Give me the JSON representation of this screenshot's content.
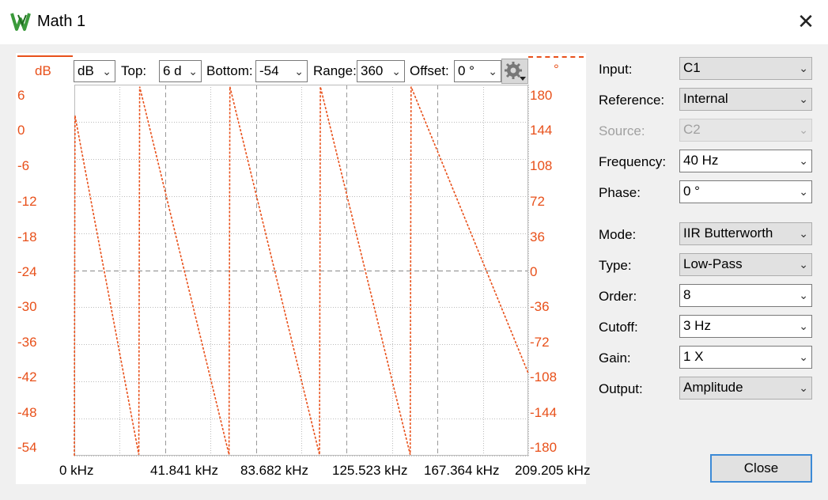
{
  "window": {
    "title": "Math 1",
    "close_icon": "close-icon"
  },
  "toolbar": {
    "unit_header": "dB",
    "unit_combo": "dB",
    "top_label": "Top:",
    "top_value": "6 d",
    "bottom_label": "Bottom:",
    "bottom_value": "-54",
    "range_label": "Range:",
    "range_value": "360",
    "offset_label": "Offset:",
    "offset_value": "0 °",
    "right_header": "°",
    "settings_icon": "gear-icon"
  },
  "axes": {
    "left_ticks": [
      "6",
      "0",
      "-6",
      "-12",
      "-18",
      "-24",
      "-30",
      "-36",
      "-42",
      "-48",
      "-54"
    ],
    "right_ticks": [
      "180",
      "144",
      "108",
      "72",
      "36",
      "0",
      "-36",
      "-72",
      "-108",
      "-144",
      "-180"
    ],
    "x_ticks": [
      "0 kHz",
      "41.841 kHz",
      "83.682 kHz",
      "125.523 kHz",
      "167.364 kHz",
      "209.205 kHz"
    ]
  },
  "chart_data": {
    "type": "line",
    "xlabel": "",
    "ylabel": "",
    "x_unit": "kHz",
    "xlim": [
      0,
      209.205
    ],
    "ylim_left": [
      -54,
      6
    ],
    "ylim_right": [
      -180,
      180
    ],
    "grid": true,
    "series": [
      {
        "axis": "right",
        "style": "dashed",
        "color": "#e8501a",
        "x": [
          0,
          0.3,
          29.7,
          30.1,
          71.3,
          71.7,
          113.0,
          113.4,
          154.8,
          155.2,
          209.205
        ],
        "y": [
          -180,
          150,
          -179,
          178,
          -179,
          178,
          -179,
          178,
          -179,
          178,
          -100
        ]
      }
    ]
  },
  "fields": [
    {
      "label": "Input:",
      "value": "C1",
      "disabled": false,
      "style": "gray"
    },
    {
      "label": "Reference:",
      "value": "Internal",
      "disabled": false,
      "style": "gray"
    },
    {
      "label": "Source:",
      "value": "C2",
      "disabled": true,
      "style": "gray"
    },
    {
      "label": "Frequency:",
      "value": "40 Hz",
      "disabled": false,
      "style": "white"
    },
    {
      "label": "Phase:",
      "value": "0 °",
      "disabled": false,
      "style": "white"
    },
    {
      "label": "Mode:",
      "value": "IIR Butterworth",
      "disabled": false,
      "style": "gray"
    },
    {
      "label": "Type:",
      "value": "Low-Pass",
      "disabled": false,
      "style": "gray"
    },
    {
      "label": "Order:",
      "value": "8",
      "disabled": false,
      "style": "white"
    },
    {
      "label": "Cutoff:",
      "value": "3 Hz",
      "disabled": false,
      "style": "white"
    },
    {
      "label": "Gain:",
      "value": "1 X",
      "disabled": false,
      "style": "white"
    },
    {
      "label": "Output:",
      "value": "Amplitude",
      "disabled": false,
      "style": "gray"
    }
  ],
  "buttons": {
    "close": "Close"
  },
  "colors": {
    "accent": "#e8501a",
    "focus": "#3c8ad6"
  }
}
